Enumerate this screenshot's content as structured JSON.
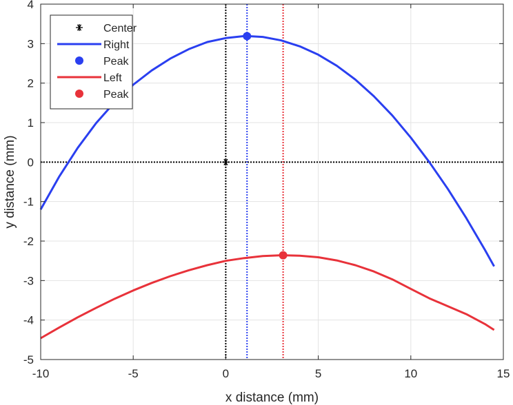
{
  "chart_data": {
    "type": "line",
    "title": "",
    "xlabel": "x distance (mm)",
    "ylabel": "y distance (mm)",
    "xlim": [
      -10,
      15
    ],
    "ylim": [
      -5,
      4
    ],
    "xticks": [
      -10,
      -5,
      0,
      5,
      10,
      15
    ],
    "yticks": [
      -5,
      -4,
      -3,
      -2,
      -1,
      0,
      1,
      2,
      3,
      4
    ],
    "xtick_labels": [
      "-10",
      "-5",
      "0",
      "5",
      "10",
      "15"
    ],
    "ytick_labels": [
      "-5",
      "-4",
      "-3",
      "-2",
      "-1",
      "0",
      "1",
      "2",
      "3",
      "4"
    ],
    "grid": true,
    "legend_position": "top-left",
    "series": [
      {
        "name": "Right",
        "kind": "line",
        "color": "#2a3ff0",
        "x": [
          -10,
          -9,
          -8,
          -7,
          -6,
          -5,
          -4,
          -3,
          -2,
          -1,
          0,
          1,
          1.15,
          2,
          3,
          4,
          5,
          6,
          7,
          8,
          9,
          10,
          11,
          12,
          13,
          14,
          14.5
        ],
        "y": [
          -1.2,
          -0.37,
          0.36,
          0.99,
          1.52,
          1.96,
          2.32,
          2.62,
          2.86,
          3.04,
          3.14,
          3.19,
          3.19,
          3.17,
          3.08,
          2.93,
          2.72,
          2.44,
          2.09,
          1.67,
          1.18,
          0.62,
          0.0,
          -0.68,
          -1.42,
          -2.22,
          -2.64
        ]
      },
      {
        "name": "Peak",
        "kind": "marker",
        "color": "#2a3ff0",
        "x": [
          1.15
        ],
        "y": [
          3.19
        ]
      },
      {
        "name": "Left",
        "kind": "line",
        "color": "#e8323a",
        "x": [
          -10,
          -9,
          -8,
          -7,
          -6,
          -5,
          -4,
          -3,
          -2,
          -1,
          0,
          1,
          2,
          3,
          3.1,
          4,
          5,
          6,
          7,
          8,
          9,
          10,
          11,
          12,
          13,
          14,
          14.5
        ],
        "y": [
          -4.46,
          -4.19,
          -3.93,
          -3.69,
          -3.46,
          -3.25,
          -3.06,
          -2.89,
          -2.74,
          -2.61,
          -2.5,
          -2.43,
          -2.38,
          -2.36,
          -2.36,
          -2.37,
          -2.41,
          -2.49,
          -2.61,
          -2.77,
          -2.97,
          -3.21,
          -3.45,
          -3.65,
          -3.85,
          -4.1,
          -4.25
        ]
      },
      {
        "name": "Peak",
        "kind": "marker",
        "color": "#e8323a",
        "x": [
          3.1
        ],
        "y": [
          -2.36
        ]
      }
    ],
    "center": {
      "name": "Center",
      "x": 0,
      "y": 0,
      "marker": "*"
    },
    "reference_lines": [
      {
        "orientation": "vertical",
        "x": 0,
        "color": "#000000",
        "style": "dotted"
      },
      {
        "orientation": "horizontal",
        "y": 0,
        "color": "#000000",
        "style": "dotted"
      },
      {
        "orientation": "vertical",
        "x": 1.15,
        "color": "#2a3ff0",
        "style": "dotted"
      },
      {
        "orientation": "vertical",
        "x": 3.1,
        "color": "#e8323a",
        "style": "dotted"
      }
    ],
    "legend": [
      {
        "label": "Center",
        "symbol": "asterisk",
        "color": "#000000"
      },
      {
        "label": "Right",
        "symbol": "line",
        "color": "#2a3ff0"
      },
      {
        "label": "Peak",
        "symbol": "dot",
        "color": "#2a3ff0"
      },
      {
        "label": "Left",
        "symbol": "line",
        "color": "#e8323a"
      },
      {
        "label": "Peak",
        "symbol": "dot",
        "color": "#e8323a"
      }
    ]
  }
}
